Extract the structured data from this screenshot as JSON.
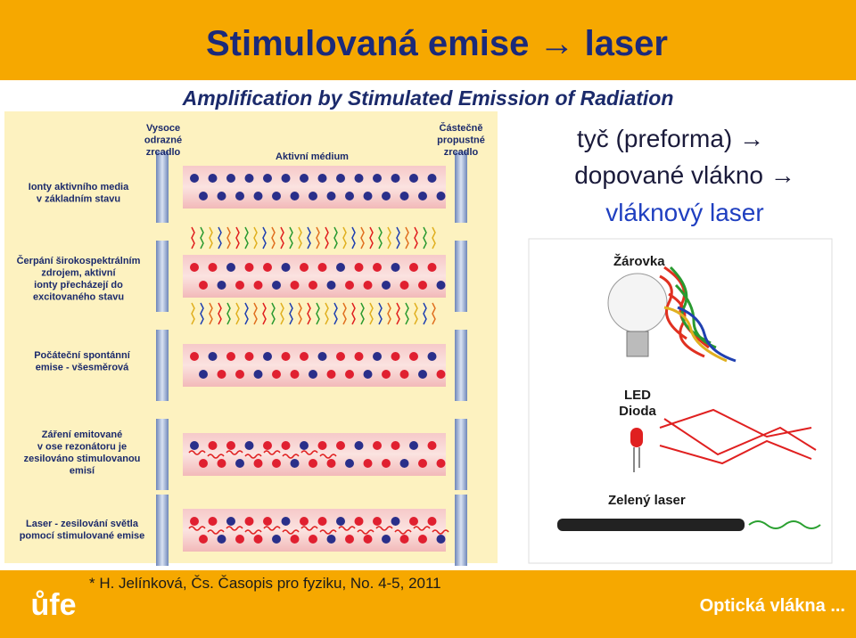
{
  "header": {
    "title": "Stimulovaná emise → laser",
    "subtitle": "Amplification by Stimulated Emission of Radiation"
  },
  "side_text": [
    "tyč (preforma) →",
    "dopované vlákno →",
    "vláknový laser"
  ],
  "laser_figure": {
    "mirror_left": [
      "Vysoce",
      "odrazné",
      "zrcadlo"
    ],
    "medium": "Aktivní médium",
    "mirror_right": [
      "Částečně",
      "propustné",
      "zrcadlo"
    ],
    "stages": [
      [
        "Ionty aktivního media",
        "v základním stavu"
      ],
      [
        "Čerpání širokospektrálním",
        "zdrojem, aktivní",
        "ionty přecházejí do",
        "excitovaného stavu"
      ],
      [
        "Počáteční spontánní",
        "emise - všesměrová"
      ],
      [
        "Záření emitované",
        "v ose rezonátoru je",
        "zesilováno stimulovanou",
        "emisí"
      ],
      [
        "Laser - zesilování světla",
        "pomocí stimulované emise"
      ]
    ]
  },
  "sources_figure": {
    "bulb": "Žárovka",
    "led": [
      "LED",
      "Dioda"
    ],
    "laser": "Zelený laser"
  },
  "footer": {
    "citation": "* H. Jelínková, Čs. Časopis pro fyziku, No. 4-5, 2011",
    "logo": "ůfe",
    "section": "Optická vlákna ..."
  }
}
